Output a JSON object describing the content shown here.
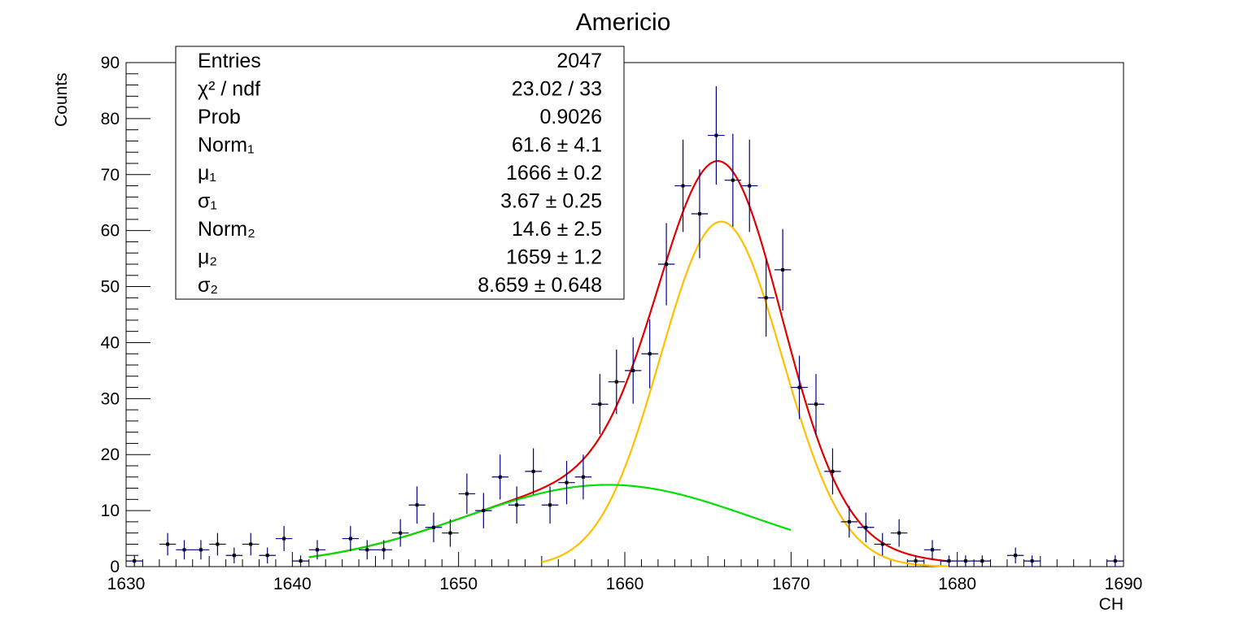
{
  "chart_data": {
    "type": "scatter",
    "title": "Americio",
    "xlabel": "CH",
    "ylabel": "Counts",
    "xlim": [
      1630,
      1690
    ],
    "ylim": [
      0,
      90
    ],
    "x_ticks": [
      1630,
      1640,
      1650,
      1660,
      1670,
      1680,
      1690
    ],
    "y_ticks": [
      0,
      10,
      20,
      30,
      40,
      50,
      60,
      70,
      80,
      90
    ],
    "grid": false,
    "legend": "none",
    "bin_width": 1,
    "histogram": {
      "x": [
        1630.5,
        1632.5,
        1633.5,
        1634.5,
        1635.5,
        1636.5,
        1637.5,
        1638.5,
        1639.5,
        1640.5,
        1641.5,
        1643.5,
        1644.5,
        1645.5,
        1646.5,
        1647.5,
        1648.5,
        1649.5,
        1650.5,
        1651.5,
        1652.5,
        1653.5,
        1654.5,
        1655.5,
        1656.5,
        1657.5,
        1658.5,
        1659.5,
        1660.5,
        1661.5,
        1662.5,
        1663.5,
        1664.5,
        1665.5,
        1666.5,
        1667.5,
        1668.5,
        1669.5,
        1670.5,
        1671.5,
        1672.5,
        1673.5,
        1674.5,
        1675.5,
        1676.5,
        1677.5,
        1678.5,
        1679.5,
        1680.5,
        1681.5,
        1683.5,
        1684.5,
        1689.5
      ],
      "y": [
        1,
        4,
        3,
        3,
        4,
        2,
        4,
        2,
        5,
        1,
        3,
        5,
        3,
        3,
        6,
        11,
        7,
        6,
        13,
        10,
        16,
        11,
        17,
        11,
        15,
        16,
        29,
        33,
        35,
        38,
        54,
        68,
        63,
        77,
        69,
        68,
        48,
        53,
        32,
        29,
        17,
        8,
        7,
        4,
        6,
        1,
        3,
        1,
        1,
        1,
        2,
        1,
        1
      ]
    },
    "stats_box": [
      {
        "label": "Entries",
        "value": "2047"
      },
      {
        "label": "χ² / ndf",
        "value": "23.02 / 33"
      },
      {
        "label": "Prob",
        "value": "0.9026"
      },
      {
        "label": "Norm₁",
        "value": "61.6 ± 4.1"
      },
      {
        "label": "μ₁",
        "value": "1666 ± 0.2"
      },
      {
        "label": "σ₁",
        "value": "3.67 ± 0.25"
      },
      {
        "label": "Norm₂",
        "value": "14.6 ± 2.5"
      },
      {
        "label": "μ₂",
        "value": "1659 ± 1.2"
      },
      {
        "label": "σ₂",
        "value": "8.659 ± 0.648"
      }
    ],
    "fit_curves": [
      {
        "color": "#e00000",
        "x_range": [
          1641,
          1679.5
        ],
        "components": [
          {
            "norm": 61.6,
            "mean": 1665.8,
            "sigma": 3.67
          },
          {
            "norm": 14.6,
            "mean": 1659,
            "sigma": 8.659
          }
        ]
      },
      {
        "color": "#ffc000",
        "x_range": [
          1655,
          1679.5
        ],
        "components": [
          {
            "norm": 61.6,
            "mean": 1665.8,
            "sigma": 3.67
          }
        ]
      },
      {
        "color": "#00e000",
        "x_range": [
          1641,
          1670
        ],
        "components": [
          {
            "norm": 14.6,
            "mean": 1659,
            "sigma": 8.659
          }
        ]
      }
    ],
    "marker_color": "#000000",
    "error_bar_color": "#000080"
  }
}
